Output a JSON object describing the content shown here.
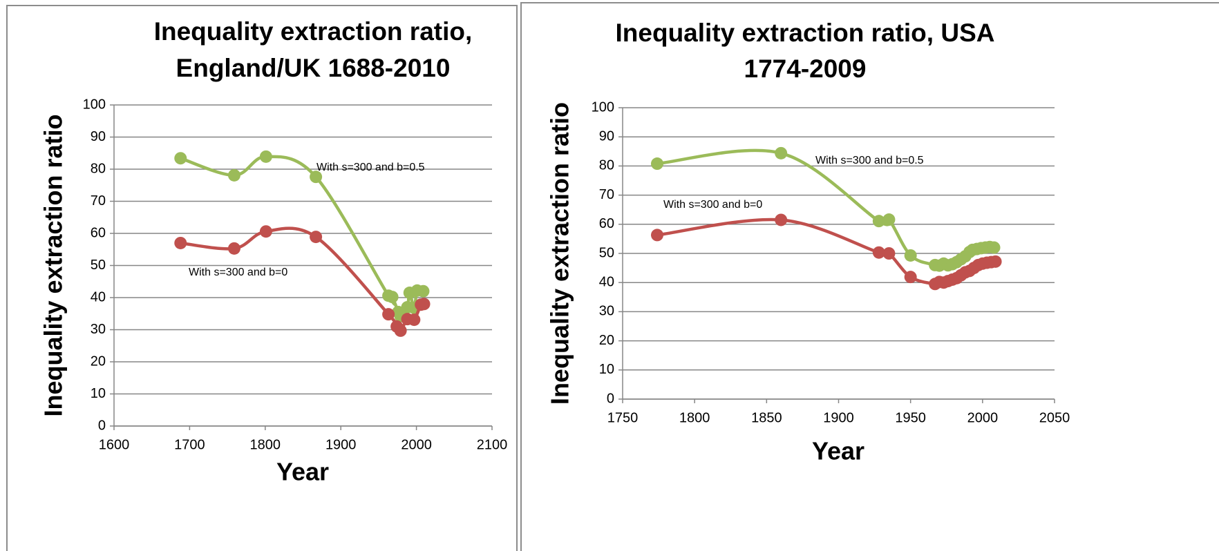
{
  "chart_data": [
    {
      "type": "line",
      "title": [
        "Inequality extraction ratio,",
        "England/UK 1688-2010"
      ],
      "xlabel": "Year",
      "ylabel": "Inequality extraction ratio",
      "xlim": [
        1600,
        2100
      ],
      "xticks": [
        1600,
        1700,
        1800,
        1900,
        2000,
        2100
      ],
      "ylim": [
        0,
        100
      ],
      "yticks": [
        0,
        10,
        20,
        30,
        40,
        50,
        60,
        70,
        80,
        90,
        100
      ],
      "grid": true,
      "series": [
        {
          "name": "With s=300 and b=0.5",
          "color": "#9bbb59",
          "x": [
            1688,
            1759,
            1801,
            1867,
            1963,
            1968,
            1976,
            1979,
            1988,
            1991,
            1997,
            2001,
            2009
          ],
          "values": [
            83.4,
            78.1,
            83.9,
            77.6,
            40.6,
            40.2,
            35.5,
            34.2,
            37,
            41.5,
            36.8,
            42.2,
            42.0
          ]
        },
        {
          "name": "With s=300 and b=0",
          "color": "#c0504d",
          "x": [
            1688,
            1759,
            1801,
            1867,
            1963,
            1974,
            1979,
            1988,
            1997,
            2006,
            2010
          ],
          "values": [
            57,
            55.3,
            60.6,
            58.9,
            34.8,
            31,
            29.7,
            33.3,
            33.1,
            37.8,
            38
          ]
        }
      ]
    },
    {
      "type": "line",
      "title": [
        "Inequality extraction ratio, USA",
        "1774-2009"
      ],
      "xlabel": "Year",
      "ylabel": "Inequality extraction ratio",
      "xlim": [
        1750,
        2050
      ],
      "xticks": [
        1750,
        1800,
        1850,
        1900,
        1950,
        2000,
        2050
      ],
      "ylim": [
        0,
        100
      ],
      "yticks": [
        0,
        10,
        20,
        30,
        40,
        50,
        60,
        70,
        80,
        90,
        100
      ],
      "grid": true,
      "series": [
        {
          "name": "With s=300 and b=0.5",
          "color": "#9bbb59",
          "x": [
            1774,
            1860,
            1928,
            1935,
            1950,
            1967,
            1970,
            1973,
            1976,
            1979,
            1982,
            1985,
            1988,
            1991,
            1993,
            1996,
            1999,
            2002,
            2005,
            2008
          ],
          "values": [
            80.8,
            84.4,
            61.1,
            61.6,
            49.3,
            46.0,
            45.8,
            46.5,
            45.9,
            46.3,
            47.0,
            48.0,
            49.0,
            50.5,
            51.2,
            51.5,
            51.8,
            52.0,
            52.2,
            52.0
          ]
        },
        {
          "name": "With s=300 and b=0",
          "color": "#c0504d",
          "x": [
            1774,
            1860,
            1928,
            1935,
            1950,
            1967,
            1970,
            1973,
            1976,
            1979,
            1982,
            1985,
            1988,
            1991,
            1994,
            1997,
            2000,
            2003,
            2006,
            2009
          ],
          "values": [
            56.3,
            61.5,
            50.3,
            50.0,
            41.9,
            39.5,
            40.2,
            40.0,
            40.5,
            41.0,
            41.5,
            42.5,
            43.5,
            44.0,
            45.0,
            46.0,
            46.5,
            46.8,
            47.0,
            47.2
          ]
        }
      ]
    }
  ]
}
